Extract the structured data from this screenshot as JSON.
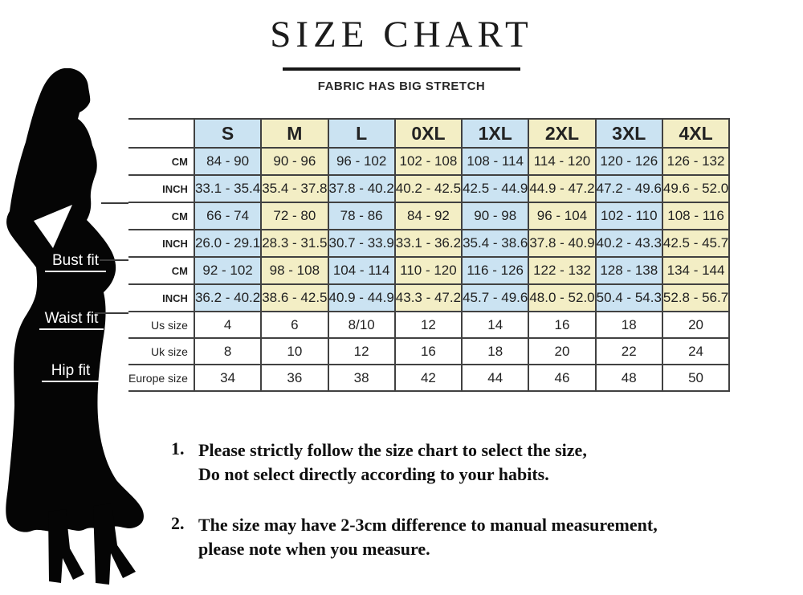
{
  "header": {
    "title": "SIZE CHART",
    "subtitle": "FABRIC HAS BIG STRETCH"
  },
  "figure": {
    "fit_labels": [
      "Bust fit",
      "Waist fit",
      "Hip fit"
    ]
  },
  "colors": {
    "column_blue": "#cbe3f2",
    "column_yellow": "#f3eec5",
    "table_border": "#414141",
    "silhouette": "#050505"
  },
  "size_table": {
    "columns": [
      "S",
      "M",
      "L",
      "0XL",
      "1XL",
      "2XL",
      "3XL",
      "4XL"
    ],
    "column_colors": [
      "blue",
      "yellow",
      "blue",
      "yellow",
      "blue",
      "yellow",
      "blue",
      "yellow"
    ],
    "groups": [
      {
        "name": "Bust fit",
        "rows": [
          {
            "label": "CM",
            "values": [
              "84 - 90",
              "90 - 96",
              "96 - 102",
              "102 - 108",
              "108 - 114",
              "114 - 120",
              "120 - 126",
              "126 - 132"
            ]
          },
          {
            "label": "INCH",
            "values": [
              "33.1 - 35.4",
              "35.4 - 37.8",
              "37.8 - 40.2",
              "40.2 - 42.5",
              "42.5 - 44.9",
              "44.9 - 47.2",
              "47.2 - 49.6",
              "49.6 - 52.0"
            ]
          }
        ]
      },
      {
        "name": "Waist fit",
        "rows": [
          {
            "label": "CM",
            "values": [
              "66 - 74",
              "72 - 80",
              "78 - 86",
              "84 - 92",
              "90 - 98",
              "96 - 104",
              "102 - 110",
              "108 - 116"
            ]
          },
          {
            "label": "INCH",
            "values": [
              "26.0 - 29.1",
              "28.3 - 31.5",
              "30.7 - 33.9",
              "33.1 - 36.2",
              "35.4 - 38.6",
              "37.8 - 40.9",
              "40.2 - 43.3",
              "42.5 - 45.7"
            ]
          }
        ]
      },
      {
        "name": "Hip fit",
        "rows": [
          {
            "label": "CM",
            "values": [
              "92 - 102",
              "98 - 108",
              "104 - 114",
              "110 - 120",
              "116 - 126",
              "122 - 132",
              "128 - 138",
              "134 - 144"
            ]
          },
          {
            "label": "INCH",
            "values": [
              "36.2 - 40.2",
              "38.6 - 42.5",
              "40.9 - 44.9",
              "43.3 - 47.2",
              "45.7 - 49.6",
              "48.0 - 52.0",
              "50.4 - 54.3",
              "52.8 - 56.7"
            ]
          }
        ]
      }
    ],
    "size_rows": [
      {
        "label": "Us size",
        "values": [
          "4",
          "6",
          "8/10",
          "12",
          "14",
          "16",
          "18",
          "20"
        ]
      },
      {
        "label": "Uk size",
        "values": [
          "8",
          "10",
          "12",
          "16",
          "18",
          "20",
          "22",
          "24"
        ]
      },
      {
        "label": "Europe size",
        "values": [
          "34",
          "36",
          "38",
          "42",
          "44",
          "46",
          "48",
          "50"
        ]
      }
    ]
  },
  "notes": [
    {
      "number": "1.",
      "lines": [
        "Please strictly follow the size chart to select the size,",
        "Do not select directly according to your habits."
      ]
    },
    {
      "number": "2.",
      "lines": [
        "The size may have 2-3cm difference  to manual measurement,",
        "please note when you measure."
      ]
    }
  ]
}
